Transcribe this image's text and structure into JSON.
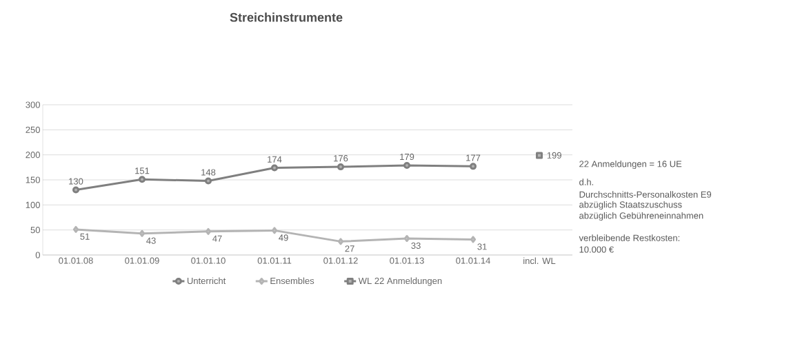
{
  "chart_data": {
    "type": "line",
    "title": "Streichinstrumente",
    "categories": [
      "01.01.08",
      "01.01.09",
      "01.01.10",
      "01.01.11",
      "01.01.12",
      "01.01.13",
      "01.01.14",
      "incl. WL"
    ],
    "series": [
      {
        "name": "Unterricht",
        "color": "#7f7f7f",
        "marker": "circle",
        "values": [
          130,
          151,
          148,
          174,
          176,
          179,
          177,
          null
        ]
      },
      {
        "name": "Ensembles",
        "color": "#b4b4b4",
        "marker": "diamond",
        "values": [
          51,
          43,
          47,
          49,
          27,
          33,
          31,
          null
        ]
      },
      {
        "name": "WL 22 Anmeldungen",
        "color": "#808080",
        "marker": "square",
        "values": [
          null,
          null,
          null,
          null,
          null,
          null,
          null,
          199
        ]
      }
    ],
    "ylim": [
      0,
      300
    ],
    "yticks": [
      0,
      50,
      100,
      150,
      200,
      250,
      300
    ],
    "grid": "y",
    "legend": "bottom",
    "data_labels": true,
    "annotations": [
      "22 Anmeldungen =  16 UE",
      "d.h.",
      "Durchschnitts-Personalkosten  E9",
      "abzüglich Staatszuschuss",
      "abzüglich Gebühreneinnahmen",
      "verbleibende Restkosten:",
      "10.000 €"
    ]
  }
}
